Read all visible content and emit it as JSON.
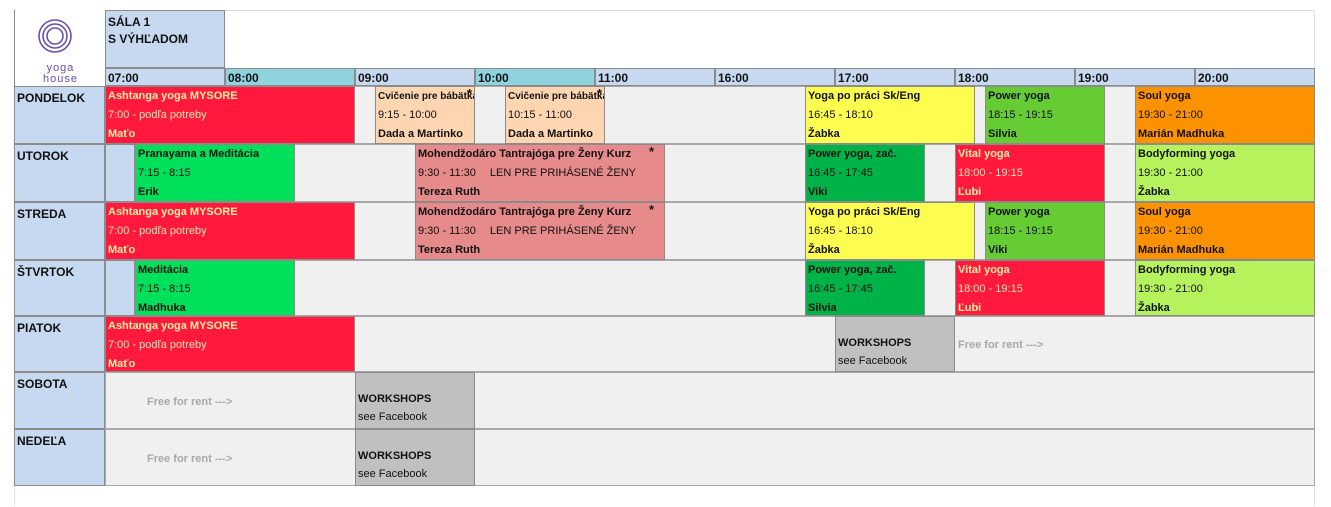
{
  "logo": {
    "line1": "yoga",
    "line2": "house"
  },
  "room": {
    "line1": "SÁLA 1",
    "line2": "S VÝHĽADOM"
  },
  "times": [
    "07:00",
    "08:00",
    "09:00",
    "10:00",
    "11:00",
    "16:00",
    "17:00",
    "18:00",
    "19:00",
    "20:00"
  ],
  "days": [
    "PONDELOK",
    "UTOROK",
    "STREDA",
    "ŠTVRTOK",
    "PIATOK",
    "SOBOTA",
    "NEDEĽA"
  ],
  "star": "*",
  "mon": {
    "e1": {
      "title": "Ashtanga yoga MYSORE",
      "time": "7:00 - podľa potreby",
      "instructor": "Maťo"
    },
    "e2": {
      "title": "Cvičenie pre bábätká",
      "time": "9:15 - 10:00",
      "instructor": "Dada a Martinko"
    },
    "e3": {
      "title": "Cvičenie pre bábätká",
      "time": "10:15 - 11:00",
      "instructor": "Dada a Martinko"
    },
    "e4": {
      "title": "Yoga po práci Sk/Eng",
      "time": "16:45 - 18:10",
      "instructor": "Žabka"
    },
    "e5": {
      "title": "Power yoga",
      "time": "18:15 - 19:15",
      "instructor": "Silvia"
    },
    "e6": {
      "title": "Soul yoga",
      "time": "19:30 - 21:00",
      "instructor": "Marián Madhuka"
    }
  },
  "tue": {
    "e1": {
      "title": "Pranayama a Meditácia",
      "time": "7:15 - 8:15",
      "instructor": "Erik"
    },
    "e2": {
      "title": "Mohendžodáro Tantrajóga pre Ženy Kurz",
      "time": "9:30 - 11:30",
      "note": "LEN PRE PRIHÁSENÉ ŽENY",
      "instructor": "Tereza Ruth"
    },
    "e3": {
      "title": "Power yoga, zač.",
      "time": "16:45 - 17:45",
      "instructor": "Viki"
    },
    "e4": {
      "title": "Vital yoga",
      "time": "18:00 - 19:15",
      "instructor": "Ľubi"
    },
    "e5": {
      "title": "Bodyforming yoga",
      "time": "19:30 - 21:00",
      "instructor": "Žabka"
    }
  },
  "wed": {
    "e1": {
      "title": "Ashtanga yoga MYSORE",
      "time": "7:00 - podľa potreby",
      "instructor": "Maťo"
    },
    "e2": {
      "title": "Mohendžodáro Tantrajóga pre Ženy Kurz",
      "time": "9:30 - 11:30",
      "note": "LEN PRE PRIHÁSENÉ ŽENY",
      "instructor": "Tereza Ruth"
    },
    "e3": {
      "title": "Yoga po práci Sk/Eng",
      "time": "16:45 - 18:10",
      "instructor": "Žabka"
    },
    "e4": {
      "title": "Power yoga",
      "time": "18:15 - 19:15",
      "instructor": "Viki"
    },
    "e5": {
      "title": "Soul yoga",
      "time": "19:30 - 21:00",
      "instructor": "Marián Madhuka"
    }
  },
  "thu": {
    "e1": {
      "title": "Meditácia",
      "time": "7:15 - 8:15",
      "instructor": "Madhuka"
    },
    "e2": {
      "title": "Power yoga, zač.",
      "time": "16:45 - 17:45",
      "instructor": "Silvia"
    },
    "e3": {
      "title": "Vital yoga",
      "time": "18:00 - 19:15",
      "instructor": "Ľubi"
    },
    "e4": {
      "title": "Bodyforming yoga",
      "time": "19:30 - 21:00",
      "instructor": "Žabka"
    }
  },
  "fri": {
    "e1": {
      "title": "Ashtanga yoga MYSORE",
      "time": "7:00 - podľa potreby",
      "instructor": "Maťo"
    },
    "ws": {
      "title": "WORKSHOPS",
      "sub": "see Facebook"
    },
    "free": "Free for rent --->"
  },
  "sat": {
    "free": "Free for rent --->",
    "ws": {
      "title": "WORKSHOPS",
      "sub": "see Facebook"
    }
  },
  "sun": {
    "free": "Free for rent --->",
    "ws": {
      "title": "WORKSHOPS",
      "sub": "see Facebook"
    }
  }
}
